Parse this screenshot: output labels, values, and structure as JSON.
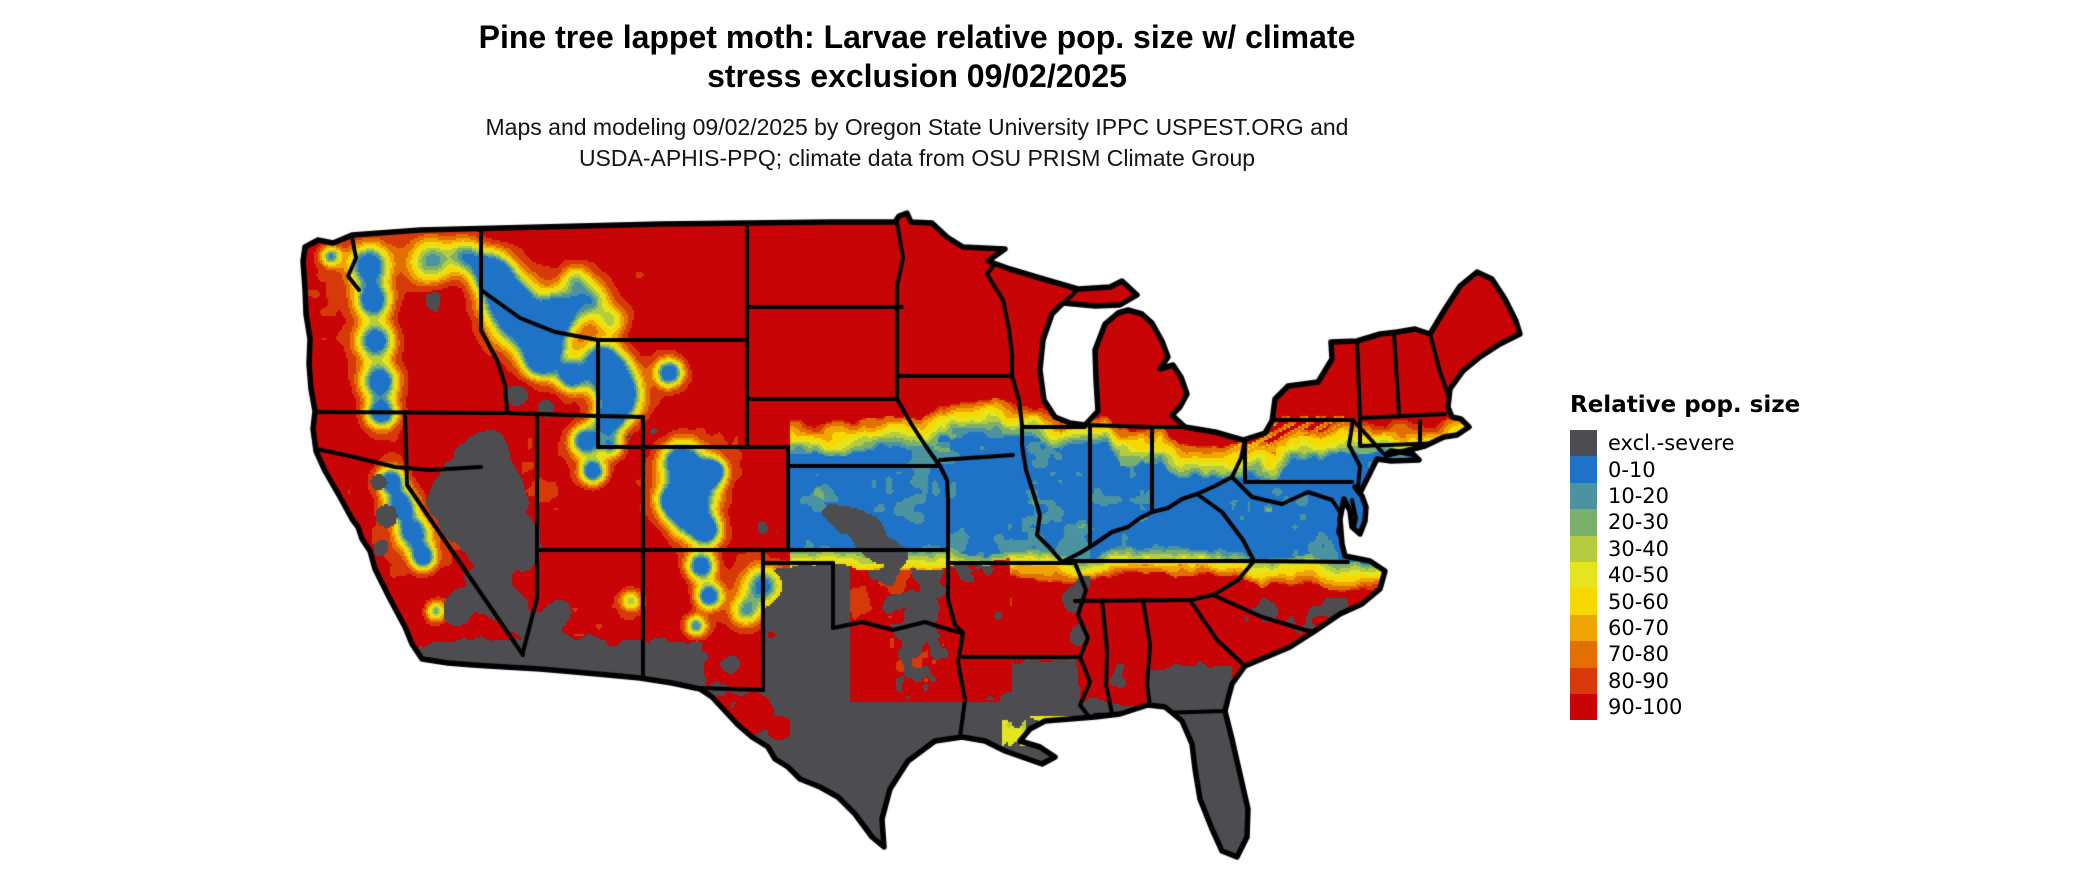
{
  "title": {
    "line1": "Pine tree lappet moth: Larvae relative pop. size w/ climate",
    "line2": "stress exclusion 09/02/2025"
  },
  "subtitle": {
    "line1": "Maps and modeling 09/02/2025 by Oregon State University IPPC USPEST.ORG and",
    "line2": "USDA-APHIS-PPQ; climate data from OSU PRISM Climate Group"
  },
  "legend": {
    "title": "Relative pop. size",
    "items": [
      {
        "label": "excl.-severe",
        "color": "#4d4d51"
      },
      {
        "label": "0-10",
        "color": "#1e73c6"
      },
      {
        "label": "10-20",
        "color": "#4b93a0"
      },
      {
        "label": "20-30",
        "color": "#7bb06c"
      },
      {
        "label": "30-40",
        "color": "#b5cc40"
      },
      {
        "label": "40-50",
        "color": "#e3e51e"
      },
      {
        "label": "50-60",
        "color": "#f7d800"
      },
      {
        "label": "60-70",
        "color": "#efa602"
      },
      {
        "label": "70-80",
        "color": "#e27000"
      },
      {
        "label": "80-90",
        "color": "#d63a08"
      },
      {
        "label": "90-100",
        "color": "#c80407"
      }
    ]
  },
  "map": {
    "region": "Contiguous United States",
    "type": "raster choropleth with state boundaries",
    "date_shown": "09/02/2025",
    "boundary_color": "#000000",
    "water_and_background_color": "#ffffff",
    "visible_pattern": {
      "north_and_mountain_west": "90-100 (red) dominant",
      "central_band_KS_MO_IL_IN_OH_KY_VA_MD_NJ": "0-10 (blue) with teal patches",
      "transition_bands": "orange/yellow/green fringes between red and blue zones",
      "southeast_interior_AR_TN_MS_AL_GA_Carolinas": "90-100 (red) with gray patches",
      "deep_south_TX_OK_LA_FL_desert_SW": "excl.-severe (dark gray)",
      "western_mountains": "0-10 blue patches over red with gray basins"
    }
  }
}
